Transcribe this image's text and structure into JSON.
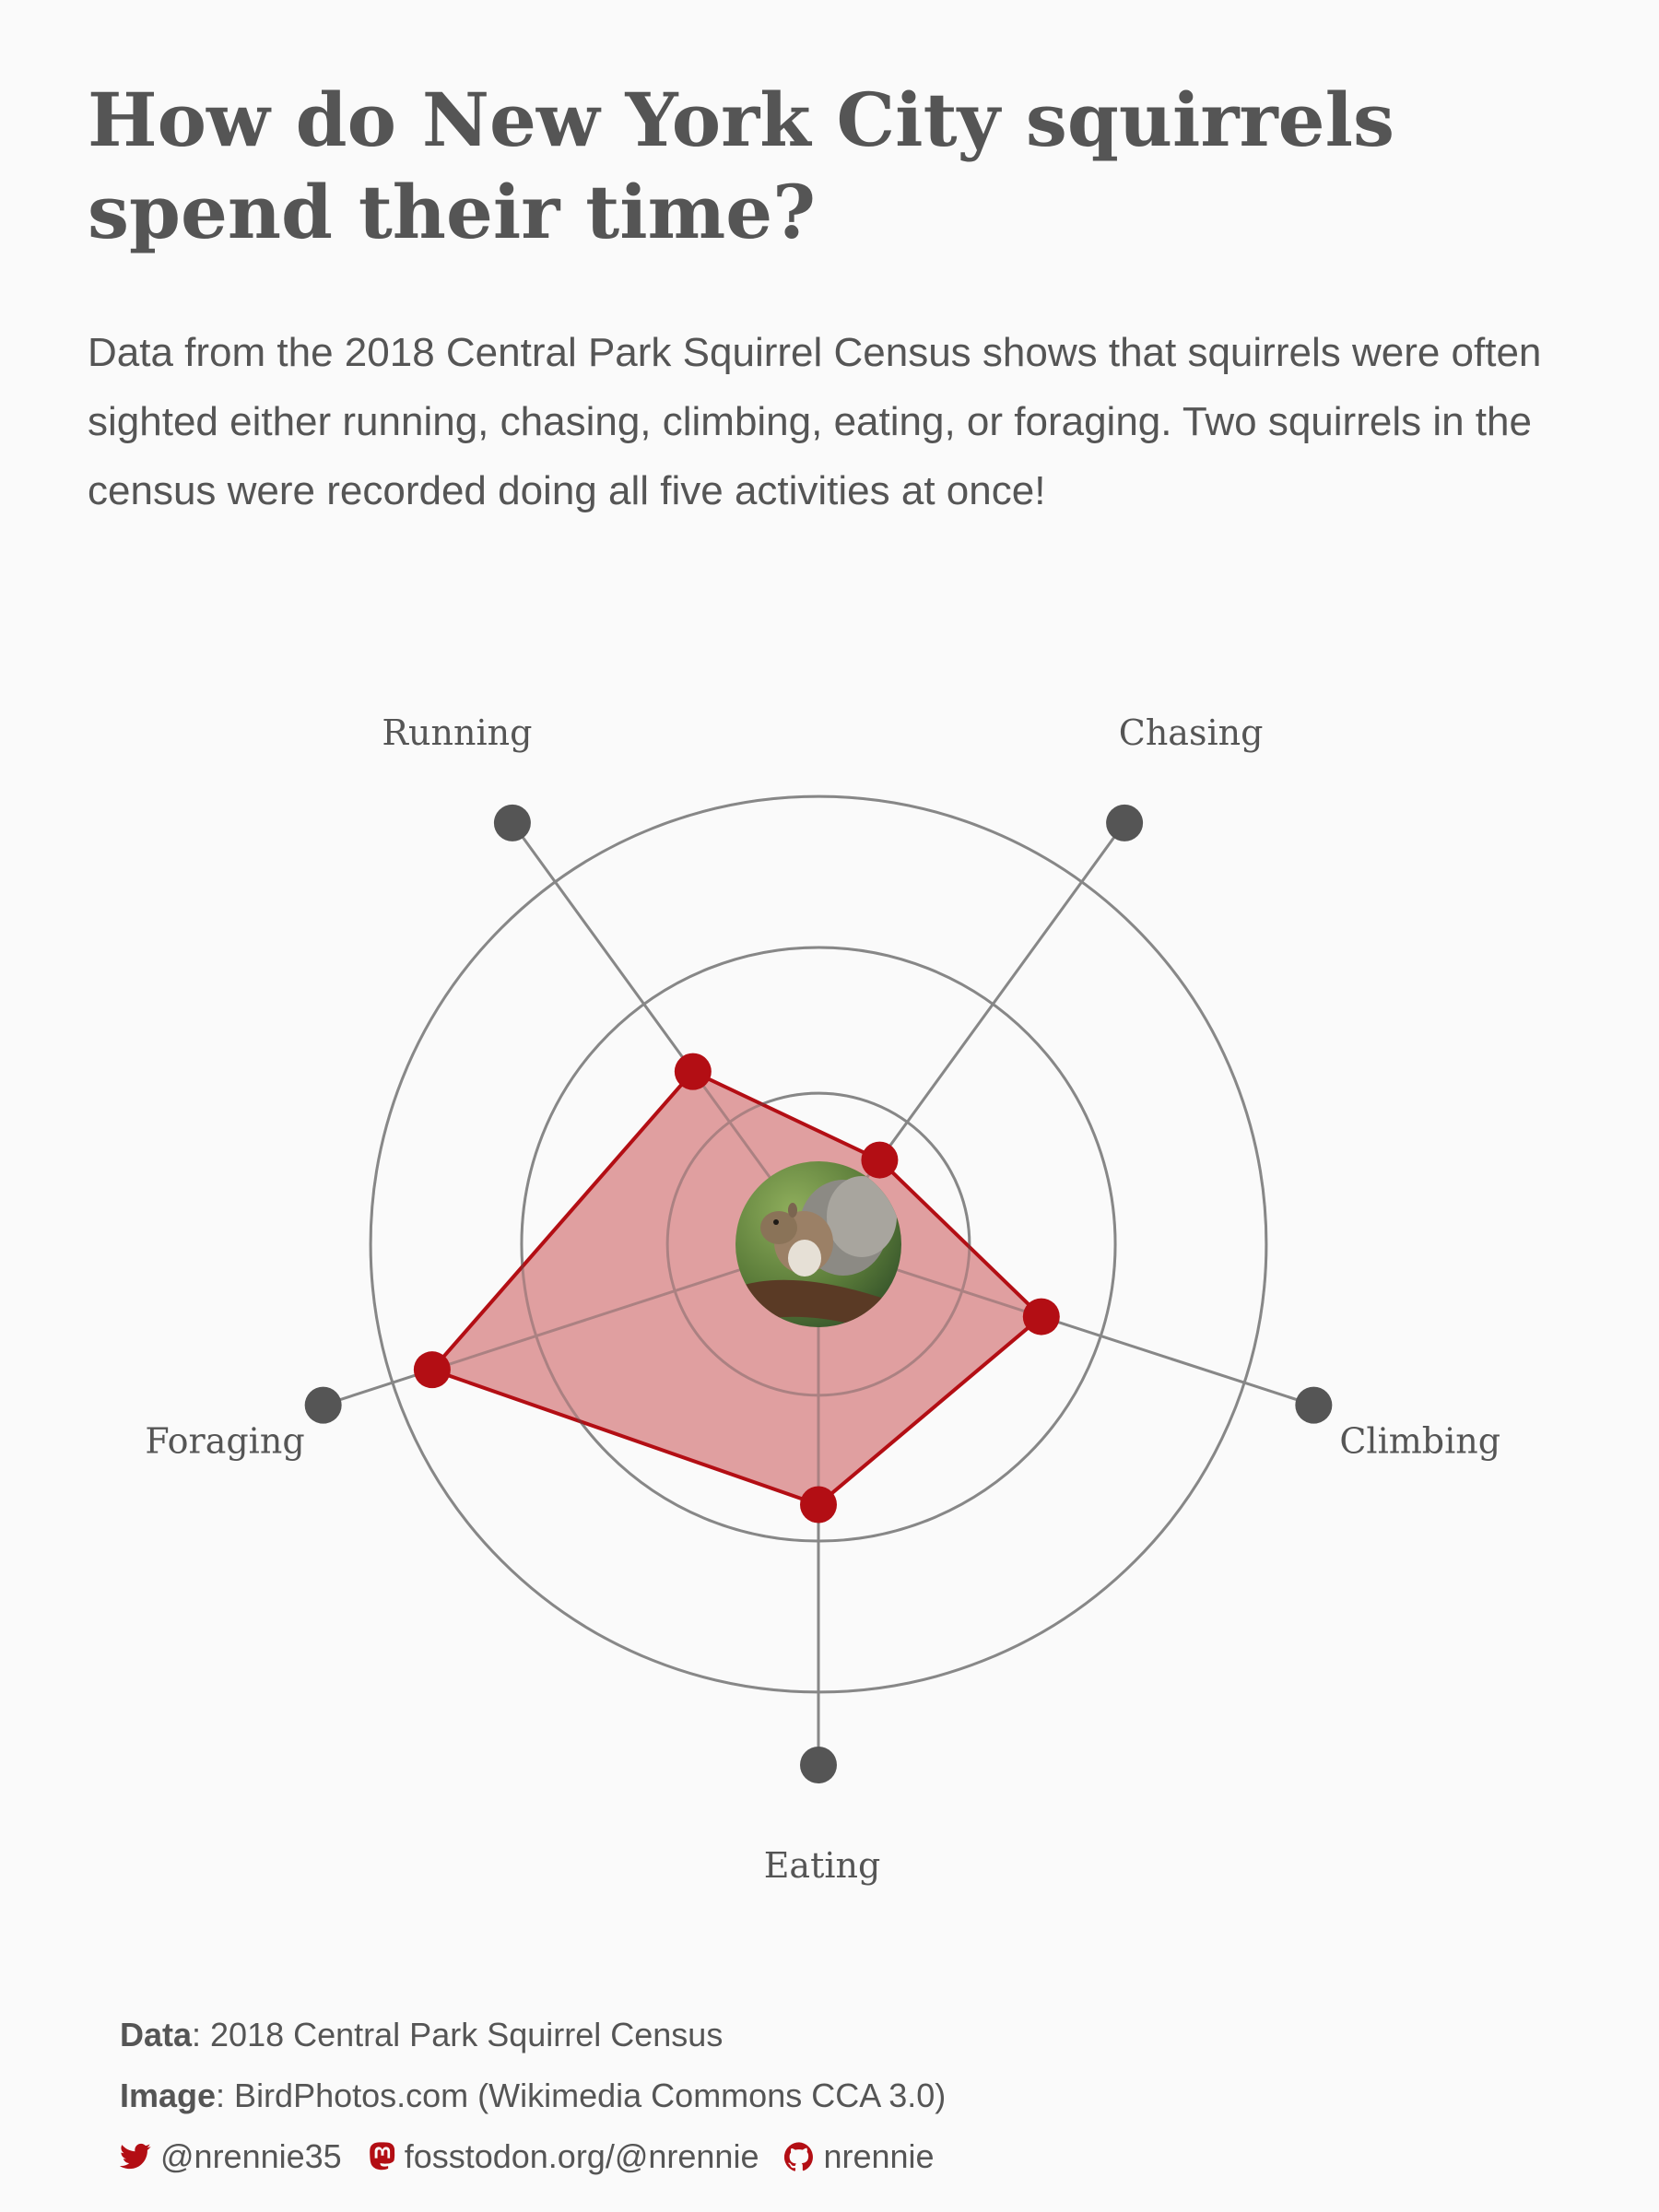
{
  "title": "How do New York City squirrels spend their time?",
  "subtitle": "Data from the 2018 Central Park Squirrel Census shows that squirrels were often sighted either running, chasing, climbing, eating, or foraging. Two squirrels in the census were recorded doing all five activities at once!",
  "colors": {
    "accent": "#b30e14",
    "fill": "#de9a9b",
    "grid": "#a3a3a3",
    "axis_dot": "#555555",
    "text": "#555555",
    "background": "#fafafa"
  },
  "chart_data": {
    "type": "radar",
    "categories": [
      "Running",
      "Chasing",
      "Climbing",
      "Eating",
      "Foraging"
    ],
    "values": [
      0.41,
      0.2,
      0.45,
      0.5,
      0.78
    ],
    "rlim": [
      0,
      1
    ],
    "rings": [
      0.29,
      0.57,
      0.86
    ],
    "center_image": "squirrel-photo"
  },
  "caption": {
    "data_label": "Data",
    "data_text": ": 2018 Central Park Squirrel Census",
    "image_label": "Image",
    "image_text": ": BirdPhotos.com (Wikimedia Commons CCA 3.0)",
    "twitter": "@nrennie35",
    "mastodon": "fosstodon.org/@nrennie",
    "github": "nrennie"
  }
}
